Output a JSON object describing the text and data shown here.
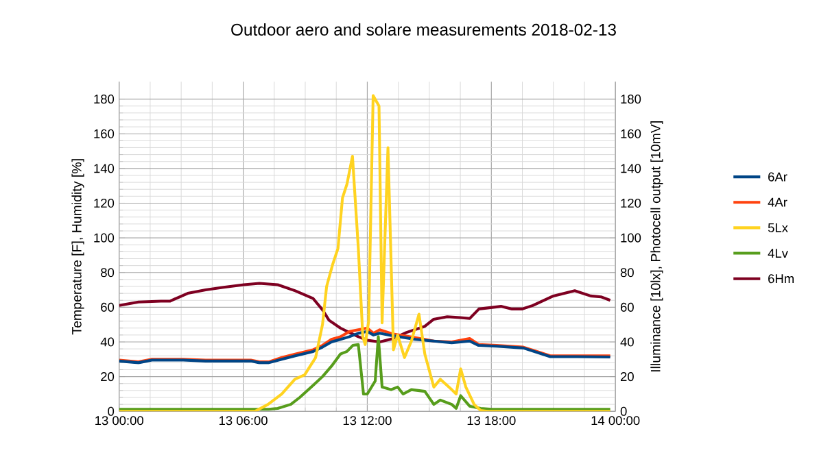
{
  "chart_data": {
    "type": "line",
    "title": "Outdoor aero and solare measurements 2018-02-13",
    "ylabel": "Temperature [F], Humidity [%]",
    "y2label": "Illuminance [10lx], Photocell output [10mV]",
    "xlim": [
      "2018-02-13T00:00",
      "2018-02-14T00:00"
    ],
    "xticks": [
      {
        "value": "2018-02-13T00:00",
        "label": "13 00:00"
      },
      {
        "value": "2018-02-13T06:00",
        "label": "13 06:00"
      },
      {
        "value": "2018-02-13T12:00",
        "label": "13 12:00"
      },
      {
        "value": "2018-02-13T18:00",
        "label": "13 18:00"
      },
      {
        "value": "2018-02-14T00:00",
        "label": "14 00:00"
      }
    ],
    "ylim": [
      0,
      190
    ],
    "yticks": [
      0,
      20,
      40,
      60,
      80,
      100,
      120,
      140,
      160,
      180
    ],
    "y2lim": [
      0,
      190
    ],
    "y2ticks": [
      0,
      20,
      40,
      60,
      80,
      100,
      120,
      140,
      160,
      180
    ],
    "grid": true,
    "legend": "right",
    "series": [
      {
        "name": "6Ar",
        "color": "#004586",
        "x": [
          "2018-02-13T00:00",
          "2018-02-13T00:56",
          "2018-02-13T01:35",
          "2018-02-13T03:06",
          "2018-02-13T04:11",
          "2018-02-13T06:22",
          "2018-02-13T06:47",
          "2018-02-13T07:14",
          "2018-02-13T07:52",
          "2018-02-13T08:31",
          "2018-02-13T09:23",
          "2018-02-13T09:50",
          "2018-02-13T10:16",
          "2018-02-13T10:42",
          "2018-02-13T11:08",
          "2018-02-13T11:34",
          "2018-02-13T12:00",
          "2018-02-13T12:18",
          "2018-02-13T12:36",
          "2018-02-13T13:16",
          "2018-02-13T14:20",
          "2018-02-13T15:13",
          "2018-02-13T16:05",
          "2018-02-13T16:57",
          "2018-02-13T17:23",
          "2018-02-13T18:15",
          "2018-02-13T19:33",
          "2018-02-13T20:51",
          "2018-02-13T22:09",
          "2018-02-13T23:45"
        ],
        "values": [
          29,
          28,
          29.5,
          29.5,
          29,
          29,
          28,
          28,
          30,
          32,
          34.5,
          37,
          40,
          41.5,
          43,
          45,
          46,
          44,
          45,
          43.5,
          41.5,
          40.5,
          39.5,
          40.5,
          38,
          37.5,
          36.5,
          31.5,
          31.5,
          31.3
        ]
      },
      {
        "name": "4Ar",
        "color": "#ff420e",
        "x": [
          "2018-02-13T00:00",
          "2018-02-13T00:56",
          "2018-02-13T01:35",
          "2018-02-13T03:06",
          "2018-02-13T04:11",
          "2018-02-13T06:22",
          "2018-02-13T06:47",
          "2018-02-13T07:14",
          "2018-02-13T07:52",
          "2018-02-13T08:31",
          "2018-02-13T09:23",
          "2018-02-13T09:50",
          "2018-02-13T10:16",
          "2018-02-13T10:42",
          "2018-02-13T11:08",
          "2018-02-13T11:34",
          "2018-02-13T12:00",
          "2018-02-13T12:18",
          "2018-02-13T12:36",
          "2018-02-13T13:16",
          "2018-02-13T14:20",
          "2018-02-13T15:13",
          "2018-02-13T16:05",
          "2018-02-13T16:57",
          "2018-02-13T17:23",
          "2018-02-13T18:15",
          "2018-02-13T19:33",
          "2018-02-13T20:51",
          "2018-02-13T22:09",
          "2018-02-13T23:45"
        ],
        "values": [
          29.5,
          28.5,
          30,
          30,
          29.5,
          29.5,
          28.5,
          28.5,
          31,
          33,
          35.5,
          38,
          41.5,
          43,
          46,
          47,
          48,
          45,
          47,
          44.5,
          42.5,
          40.5,
          40,
          42,
          38.5,
          38,
          37,
          32,
          32,
          32
        ]
      },
      {
        "name": "5Lx",
        "color": "#ffd320",
        "axis": "y2",
        "x": [
          "2018-02-13T00:00",
          "2018-02-13T06:34",
          "2018-02-13T07:12",
          "2018-02-13T07:52",
          "2018-02-13T08:30",
          "2018-02-13T08:58",
          "2018-02-13T09:30",
          "2018-02-13T09:50",
          "2018-02-13T10:02",
          "2018-02-13T10:20",
          "2018-02-13T10:35",
          "2018-02-13T10:48",
          "2018-02-13T11:01",
          "2018-02-13T11:17",
          "2018-02-13T11:34",
          "2018-02-13T11:47",
          "2018-02-13T11:54",
          "2018-02-13T12:04",
          "2018-02-13T12:17",
          "2018-02-13T12:34",
          "2018-02-13T12:43",
          "2018-02-13T13:00",
          "2018-02-13T13:16",
          "2018-02-13T13:28",
          "2018-02-13T13:48",
          "2018-02-13T14:08",
          "2018-02-13T14:30",
          "2018-02-13T14:47",
          "2018-02-13T15:13",
          "2018-02-13T15:32",
          "2018-02-13T16:05",
          "2018-02-13T16:18",
          "2018-02-13T16:31",
          "2018-02-13T16:46",
          "2018-02-13T17:10",
          "2018-02-13T17:29",
          "2018-02-13T17:49",
          "2018-02-13T23:45"
        ],
        "values": [
          0,
          0,
          4,
          10,
          18.5,
          21,
          31,
          50,
          72,
          85,
          94,
          123,
          131,
          147,
          94,
          43,
          38.5,
          52,
          182,
          176,
          51,
          152,
          35.5,
          44,
          31,
          40.5,
          56,
          33,
          14,
          18.5,
          12.5,
          10,
          24.5,
          14,
          4,
          0.5,
          0,
          0
        ]
      },
      {
        "name": "4Lv",
        "color": "#579d1c",
        "axis": "y2",
        "x": [
          "2018-02-13T00:00",
          "2018-02-13T07:14",
          "2018-02-13T07:40",
          "2018-02-13T08:18",
          "2018-02-13T08:44",
          "2018-02-13T09:23",
          "2018-02-13T09:50",
          "2018-02-13T10:16",
          "2018-02-13T10:42",
          "2018-02-13T11:01",
          "2018-02-13T11:18",
          "2018-02-13T11:34",
          "2018-02-13T11:49",
          "2018-02-13T12:00",
          "2018-02-13T12:23",
          "2018-02-13T12:32",
          "2018-02-13T12:43",
          "2018-02-13T13:09",
          "2018-02-13T13:28",
          "2018-02-13T13:44",
          "2018-02-13T14:08",
          "2018-02-13T14:47",
          "2018-02-13T15:13",
          "2018-02-13T15:32",
          "2018-02-13T16:05",
          "2018-02-13T16:18",
          "2018-02-13T16:31",
          "2018-02-13T16:57",
          "2018-02-13T17:29",
          "2018-02-13T18:02",
          "2018-02-13T23:45"
        ],
        "values": [
          1.2,
          1.2,
          1.7,
          4,
          8,
          15,
          20,
          26,
          33,
          34.5,
          38,
          38.5,
          10,
          10,
          17.5,
          43,
          14,
          12.5,
          14,
          10,
          12.5,
          11.5,
          4,
          6.5,
          4,
          1.7,
          9,
          3,
          1.7,
          1.2,
          1.2
        ]
      },
      {
        "name": "6Hm",
        "color": "#7e0021",
        "x": [
          "2018-02-13T00:00",
          "2018-02-13T00:56",
          "2018-02-13T02:01",
          "2018-02-13T02:27",
          "2018-02-13T03:19",
          "2018-02-13T04:11",
          "2018-02-13T05:03",
          "2018-02-13T06:02",
          "2018-02-13T06:47",
          "2018-02-13T07:40",
          "2018-02-13T08:31",
          "2018-02-13T09:23",
          "2018-02-13T09:50",
          "2018-02-13T10:09",
          "2018-02-13T10:42",
          "2018-02-13T11:34",
          "2018-02-13T12:00",
          "2018-02-13T12:36",
          "2018-02-13T13:16",
          "2018-02-13T13:54",
          "2018-02-13T14:47",
          "2018-02-13T15:12",
          "2018-02-13T15:52",
          "2018-02-13T16:30",
          "2018-02-13T16:57",
          "2018-02-13T17:24",
          "2018-02-13T18:28",
          "2018-02-13T19:00",
          "2018-02-13T19:30",
          "2018-02-13T20:00",
          "2018-02-13T21:00",
          "2018-02-13T22:02",
          "2018-02-13T22:48",
          "2018-02-13T23:18",
          "2018-02-13T23:45"
        ],
        "values": [
          61,
          63,
          63.5,
          63.5,
          68,
          70,
          71.5,
          73,
          73.8,
          73,
          69.5,
          65,
          58.5,
          52.5,
          48,
          43,
          41,
          40,
          42,
          45.5,
          49,
          53,
          54.5,
          54,
          53.5,
          59,
          60.5,
          59,
          59,
          61,
          66.5,
          69.5,
          66.5,
          66,
          64
        ]
      }
    ]
  }
}
